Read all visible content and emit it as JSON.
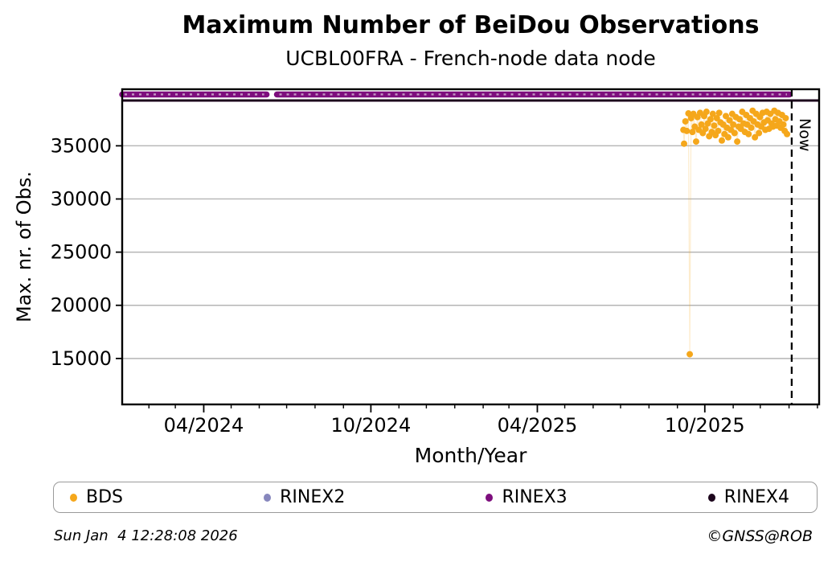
{
  "header": {
    "title": "Maximum Number of BeiDou Observations",
    "subtitle": "UCBL00FRA - French-node data node"
  },
  "footer": {
    "timestamp": "Sun Jan  4 12:28:08 2026",
    "credit": "©GNSS@ROB"
  },
  "colors": {
    "bds": "#f5a71b",
    "rinex2": "#8787bd",
    "rinex3": "#7d0e7d",
    "rinex4": "#1c051c",
    "grid": "#b5b5b5",
    "axis": "#000000"
  },
  "legend": {
    "entries": [
      {
        "id": "bds",
        "label": "BDS",
        "color": "#f5a71b"
      },
      {
        "id": "rinex2",
        "label": "RINEX2",
        "color": "#8787bd"
      },
      {
        "id": "rinex3",
        "label": "RINEX3",
        "color": "#7d0e7d"
      },
      {
        "id": "rinex4",
        "label": "RINEX4",
        "color": "#1c051c"
      }
    ]
  },
  "chart_data": {
    "type": "scatter",
    "title": "Maximum Number of BeiDou Observations",
    "subtitle": "UCBL00FRA - French-node data node",
    "xlabel": "Month/Year",
    "ylabel": "Max. nr. of Obs.",
    "xlim": [
      2024.005,
      2026.09
    ],
    "ylim": [
      10680,
      40320
    ],
    "grid": "horizontal-only",
    "legend_position": "bottom",
    "x_major_ticks": [
      {
        "x": 2024.249,
        "label": "04/2024"
      },
      {
        "x": 2024.749,
        "label": "10/2024"
      },
      {
        "x": 2025.247,
        "label": "04/2025"
      },
      {
        "x": 2025.748,
        "label": "10/2025"
      }
    ],
    "x_minor_ticks": [
      2024.085,
      2024.164,
      2024.331,
      2024.415,
      2024.497,
      2024.582,
      2024.667,
      2024.833,
      2024.915,
      2025.0,
      2025.085,
      2025.162,
      2025.329,
      2025.414,
      2025.496,
      2025.581,
      2025.666,
      2025.833,
      2025.914,
      2026.0,
      2026.085
    ],
    "y_ticks": [
      {
        "y": 15000,
        "label": "15000"
      },
      {
        "y": 20000,
        "label": "20000"
      },
      {
        "y": 25000,
        "label": "25000"
      },
      {
        "y": 30000,
        "label": "30000"
      },
      {
        "y": 35000,
        "label": "35000"
      }
    ],
    "now_line": {
      "x": 2026.008,
      "label": "Now",
      "style": "dashed-black"
    },
    "series": [
      {
        "name": "RINEX4",
        "color": "#1c051c",
        "style": "thick-line",
        "value": 39260,
        "segments": [
          [
            2024.005,
            2026.09
          ]
        ]
      },
      {
        "name": "RINEX3",
        "color": "#7d0e7d",
        "style": "thick-dotted-line",
        "value": 39830,
        "segments": [
          [
            2024.005,
            2024.437
          ],
          [
            2024.468,
            2026.001
          ]
        ]
      },
      {
        "name": "RINEX2",
        "color": "#c49ac4",
        "style": "dashed-overlay",
        "value": 39830,
        "segments": [
          [
            2024.005,
            2024.437
          ],
          [
            2024.468,
            2026.001
          ]
        ]
      },
      {
        "name": "BDS",
        "color": "#f5a71b",
        "style": "dots-with-faint-line",
        "points": [
          [
            2025.684,
            36500
          ],
          [
            2025.686,
            35200
          ],
          [
            2025.69,
            37300
          ],
          [
            2025.694,
            36400
          ],
          [
            2025.699,
            38050
          ],
          [
            2025.703,
            15400
          ],
          [
            2025.707,
            37600
          ],
          [
            2025.711,
            36300
          ],
          [
            2025.714,
            38000
          ],
          [
            2025.718,
            36800
          ],
          [
            2025.722,
            35400
          ],
          [
            2025.726,
            37700
          ],
          [
            2025.73,
            36500
          ],
          [
            2025.734,
            38100
          ],
          [
            2025.738,
            37000
          ],
          [
            2025.742,
            36200
          ],
          [
            2025.746,
            37800
          ],
          [
            2025.75,
            36600
          ],
          [
            2025.753,
            38200
          ],
          [
            2025.757,
            37100
          ],
          [
            2025.761,
            35900
          ],
          [
            2025.765,
            37500
          ],
          [
            2025.769,
            36300
          ],
          [
            2025.772,
            38000
          ],
          [
            2025.776,
            36900
          ],
          [
            2025.78,
            36000
          ],
          [
            2025.784,
            37600
          ],
          [
            2025.788,
            36400
          ],
          [
            2025.791,
            38100
          ],
          [
            2025.795,
            37200
          ],
          [
            2025.799,
            35500
          ],
          [
            2025.803,
            37000
          ],
          [
            2025.807,
            36100
          ],
          [
            2025.811,
            37800
          ],
          [
            2025.814,
            36700
          ],
          [
            2025.818,
            35800
          ],
          [
            2025.822,
            37400
          ],
          [
            2025.826,
            36500
          ],
          [
            2025.83,
            38000
          ],
          [
            2025.833,
            37000
          ],
          [
            2025.837,
            36200
          ],
          [
            2025.841,
            37700
          ],
          [
            2025.845,
            35400
          ],
          [
            2025.849,
            36800
          ],
          [
            2025.852,
            37500
          ],
          [
            2025.856,
            36600
          ],
          [
            2025.86,
            38200
          ],
          [
            2025.864,
            37100
          ],
          [
            2025.868,
            36300
          ],
          [
            2025.872,
            37900
          ],
          [
            2025.875,
            37000
          ],
          [
            2025.879,
            36100
          ],
          [
            2025.883,
            37600
          ],
          [
            2025.887,
            36700
          ],
          [
            2025.891,
            38300
          ],
          [
            2025.894,
            37300
          ],
          [
            2025.898,
            35800
          ],
          [
            2025.902,
            38000
          ],
          [
            2025.906,
            37000
          ],
          [
            2025.91,
            36200
          ],
          [
            2025.913,
            37700
          ],
          [
            2025.917,
            36800
          ],
          [
            2025.921,
            38100
          ],
          [
            2025.925,
            37200
          ],
          [
            2025.929,
            36500
          ],
          [
            2025.933,
            38200
          ],
          [
            2025.936,
            37400
          ],
          [
            2025.94,
            36600
          ],
          [
            2025.944,
            38000
          ],
          [
            2025.948,
            37100
          ],
          [
            2025.952,
            36800
          ],
          [
            2025.956,
            38300
          ],
          [
            2025.959,
            37500
          ],
          [
            2025.963,
            36900
          ],
          [
            2025.967,
            38100
          ],
          [
            2025.971,
            37300
          ],
          [
            2025.975,
            36700
          ],
          [
            2025.979,
            37900
          ],
          [
            2025.983,
            37000
          ],
          [
            2025.987,
            36400
          ],
          [
            2025.99,
            37600
          ],
          [
            2025.994,
            36100
          ]
        ]
      }
    ]
  }
}
